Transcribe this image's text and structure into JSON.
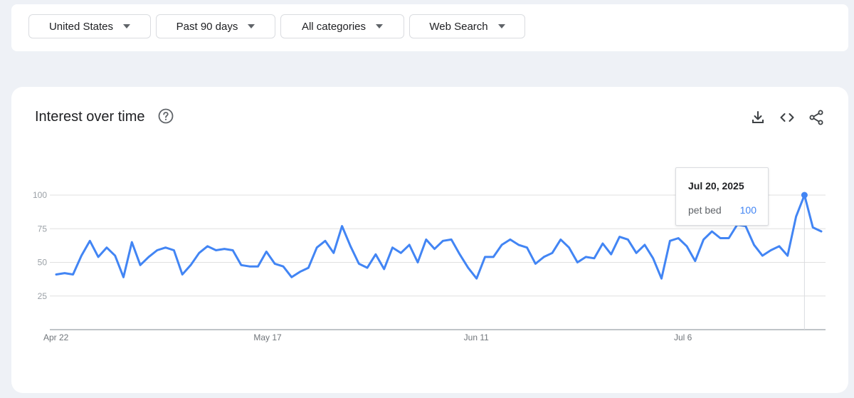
{
  "filters": {
    "region": "United States",
    "time_range": "Past 90 days",
    "category": "All categories",
    "search_type": "Web Search"
  },
  "card": {
    "title": "Interest over time"
  },
  "tooltip": {
    "date": "Jul 20, 2025",
    "term": "pet bed",
    "value": "100"
  },
  "colors": {
    "line": "#4285f4",
    "grid": "#e0e0e0",
    "axis": "#9aa0a6"
  },
  "icons": [
    "help-icon",
    "download-icon",
    "embed-code-icon",
    "share-icon"
  ],
  "chart_data": {
    "type": "line",
    "title": "",
    "xlabel": "",
    "ylabel": "",
    "ylim": [
      0,
      100
    ],
    "yticks": [
      25,
      50,
      75,
      100
    ],
    "grid": true,
    "x_ticks": [
      {
        "label": "Apr 22",
        "index": 0
      },
      {
        "label": "May 17",
        "index": 25
      },
      {
        "label": "Jun 11",
        "index": 50
      },
      {
        "label": "Jul 6",
        "index": 75
      }
    ],
    "start_label": "Apr 22",
    "series": [
      {
        "name": "pet bed",
        "values": [
          41,
          42,
          41,
          55,
          66,
          54,
          61,
          55,
          39,
          65,
          48,
          54,
          59,
          61,
          59,
          41,
          48,
          57,
          62,
          59,
          60,
          59,
          48,
          47,
          47,
          58,
          49,
          47,
          39,
          43,
          46,
          61,
          66,
          57,
          77,
          62,
          49,
          46,
          56,
          45,
          61,
          57,
          63,
          50,
          67,
          60,
          66,
          67,
          56,
          46,
          38,
          54,
          54,
          63,
          67,
          63,
          61,
          49,
          54,
          57,
          67,
          61,
          50,
          54,
          53,
          64,
          56,
          69,
          67,
          57,
          63,
          53,
          38,
          66,
          68,
          62,
          51,
          67,
          73,
          68,
          68,
          78,
          77,
          63,
          55,
          59,
          62,
          55,
          84,
          100,
          76,
          73
        ]
      }
    ],
    "highlight": {
      "index": 89,
      "value": 100
    }
  }
}
